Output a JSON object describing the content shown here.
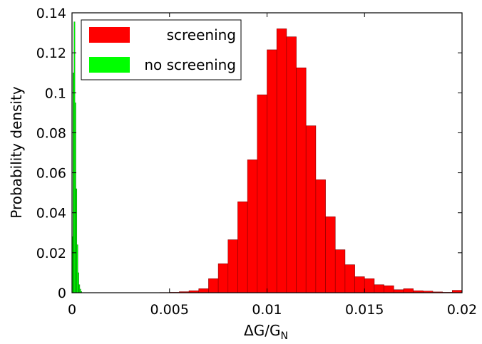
{
  "chart_data": {
    "type": "bar",
    "xlabel_main": "ΔG/G",
    "xlabel_sub": "N",
    "ylabel": "Probability density",
    "xlim": [
      0,
      0.02
    ],
    "ylim": [
      0,
      0.14
    ],
    "x_ticks": [
      "0",
      "0.005",
      "0.01",
      "0.015",
      "0.02"
    ],
    "x_tick_values": [
      0,
      0.005,
      0.01,
      0.015,
      0.02
    ],
    "y_ticks": [
      "0",
      "0.02",
      "0.04",
      "0.06",
      "0.08",
      "0.1",
      "0.12",
      "0.14"
    ],
    "y_tick_values": [
      0,
      0.02,
      0.04,
      0.06,
      0.08,
      0.1,
      0.12,
      0.14
    ],
    "legend_position": "top-left",
    "series": [
      {
        "name": "screening",
        "color": "#ff0000",
        "edge_color": "#8b0000",
        "bin_width": 0.0005,
        "bins": [
          {
            "x": 0.0045,
            "y": 0.0001
          },
          {
            "x": 0.005,
            "y": 0.0002
          },
          {
            "x": 0.0055,
            "y": 0.0005
          },
          {
            "x": 0.006,
            "y": 0.001
          },
          {
            "x": 0.0065,
            "y": 0.002
          },
          {
            "x": 0.007,
            "y": 0.007
          },
          {
            "x": 0.0075,
            "y": 0.0145
          },
          {
            "x": 0.008,
            "y": 0.0265
          },
          {
            "x": 0.0085,
            "y": 0.0455
          },
          {
            "x": 0.009,
            "y": 0.0665
          },
          {
            "x": 0.0095,
            "y": 0.099
          },
          {
            "x": 0.01,
            "y": 0.1215
          },
          {
            "x": 0.0105,
            "y": 0.132
          },
          {
            "x": 0.011,
            "y": 0.128
          },
          {
            "x": 0.0115,
            "y": 0.1125
          },
          {
            "x": 0.012,
            "y": 0.0835
          },
          {
            "x": 0.0125,
            "y": 0.0565
          },
          {
            "x": 0.013,
            "y": 0.038
          },
          {
            "x": 0.0135,
            "y": 0.0215
          },
          {
            "x": 0.014,
            "y": 0.014
          },
          {
            "x": 0.0145,
            "y": 0.008
          },
          {
            "x": 0.015,
            "y": 0.007
          },
          {
            "x": 0.0155,
            "y": 0.004
          },
          {
            "x": 0.016,
            "y": 0.0035
          },
          {
            "x": 0.0165,
            "y": 0.0015
          },
          {
            "x": 0.017,
            "y": 0.002
          },
          {
            "x": 0.0175,
            "y": 0.001
          },
          {
            "x": 0.018,
            "y": 0.0008
          },
          {
            "x": 0.0185,
            "y": 0.0004
          },
          {
            "x": 0.019,
            "y": 0.0002
          },
          {
            "x": 0.0195,
            "y": 0.0012
          }
        ]
      },
      {
        "name": "no screening",
        "color": "#00ff00",
        "edge_color": "#006400",
        "bin_width": 5e-05,
        "bins": [
          {
            "x": 0.0,
            "y": 0.028
          },
          {
            "x": 5e-05,
            "y": 0.11
          },
          {
            "x": 0.0001,
            "y": 0.1355
          },
          {
            "x": 0.00015,
            "y": 0.095
          },
          {
            "x": 0.0002,
            "y": 0.052
          },
          {
            "x": 0.00025,
            "y": 0.024
          },
          {
            "x": 0.0003,
            "y": 0.01
          },
          {
            "x": 0.00035,
            "y": 0.004
          },
          {
            "x": 0.0004,
            "y": 0.0018
          },
          {
            "x": 0.00045,
            "y": 0.0006
          }
        ]
      }
    ]
  }
}
